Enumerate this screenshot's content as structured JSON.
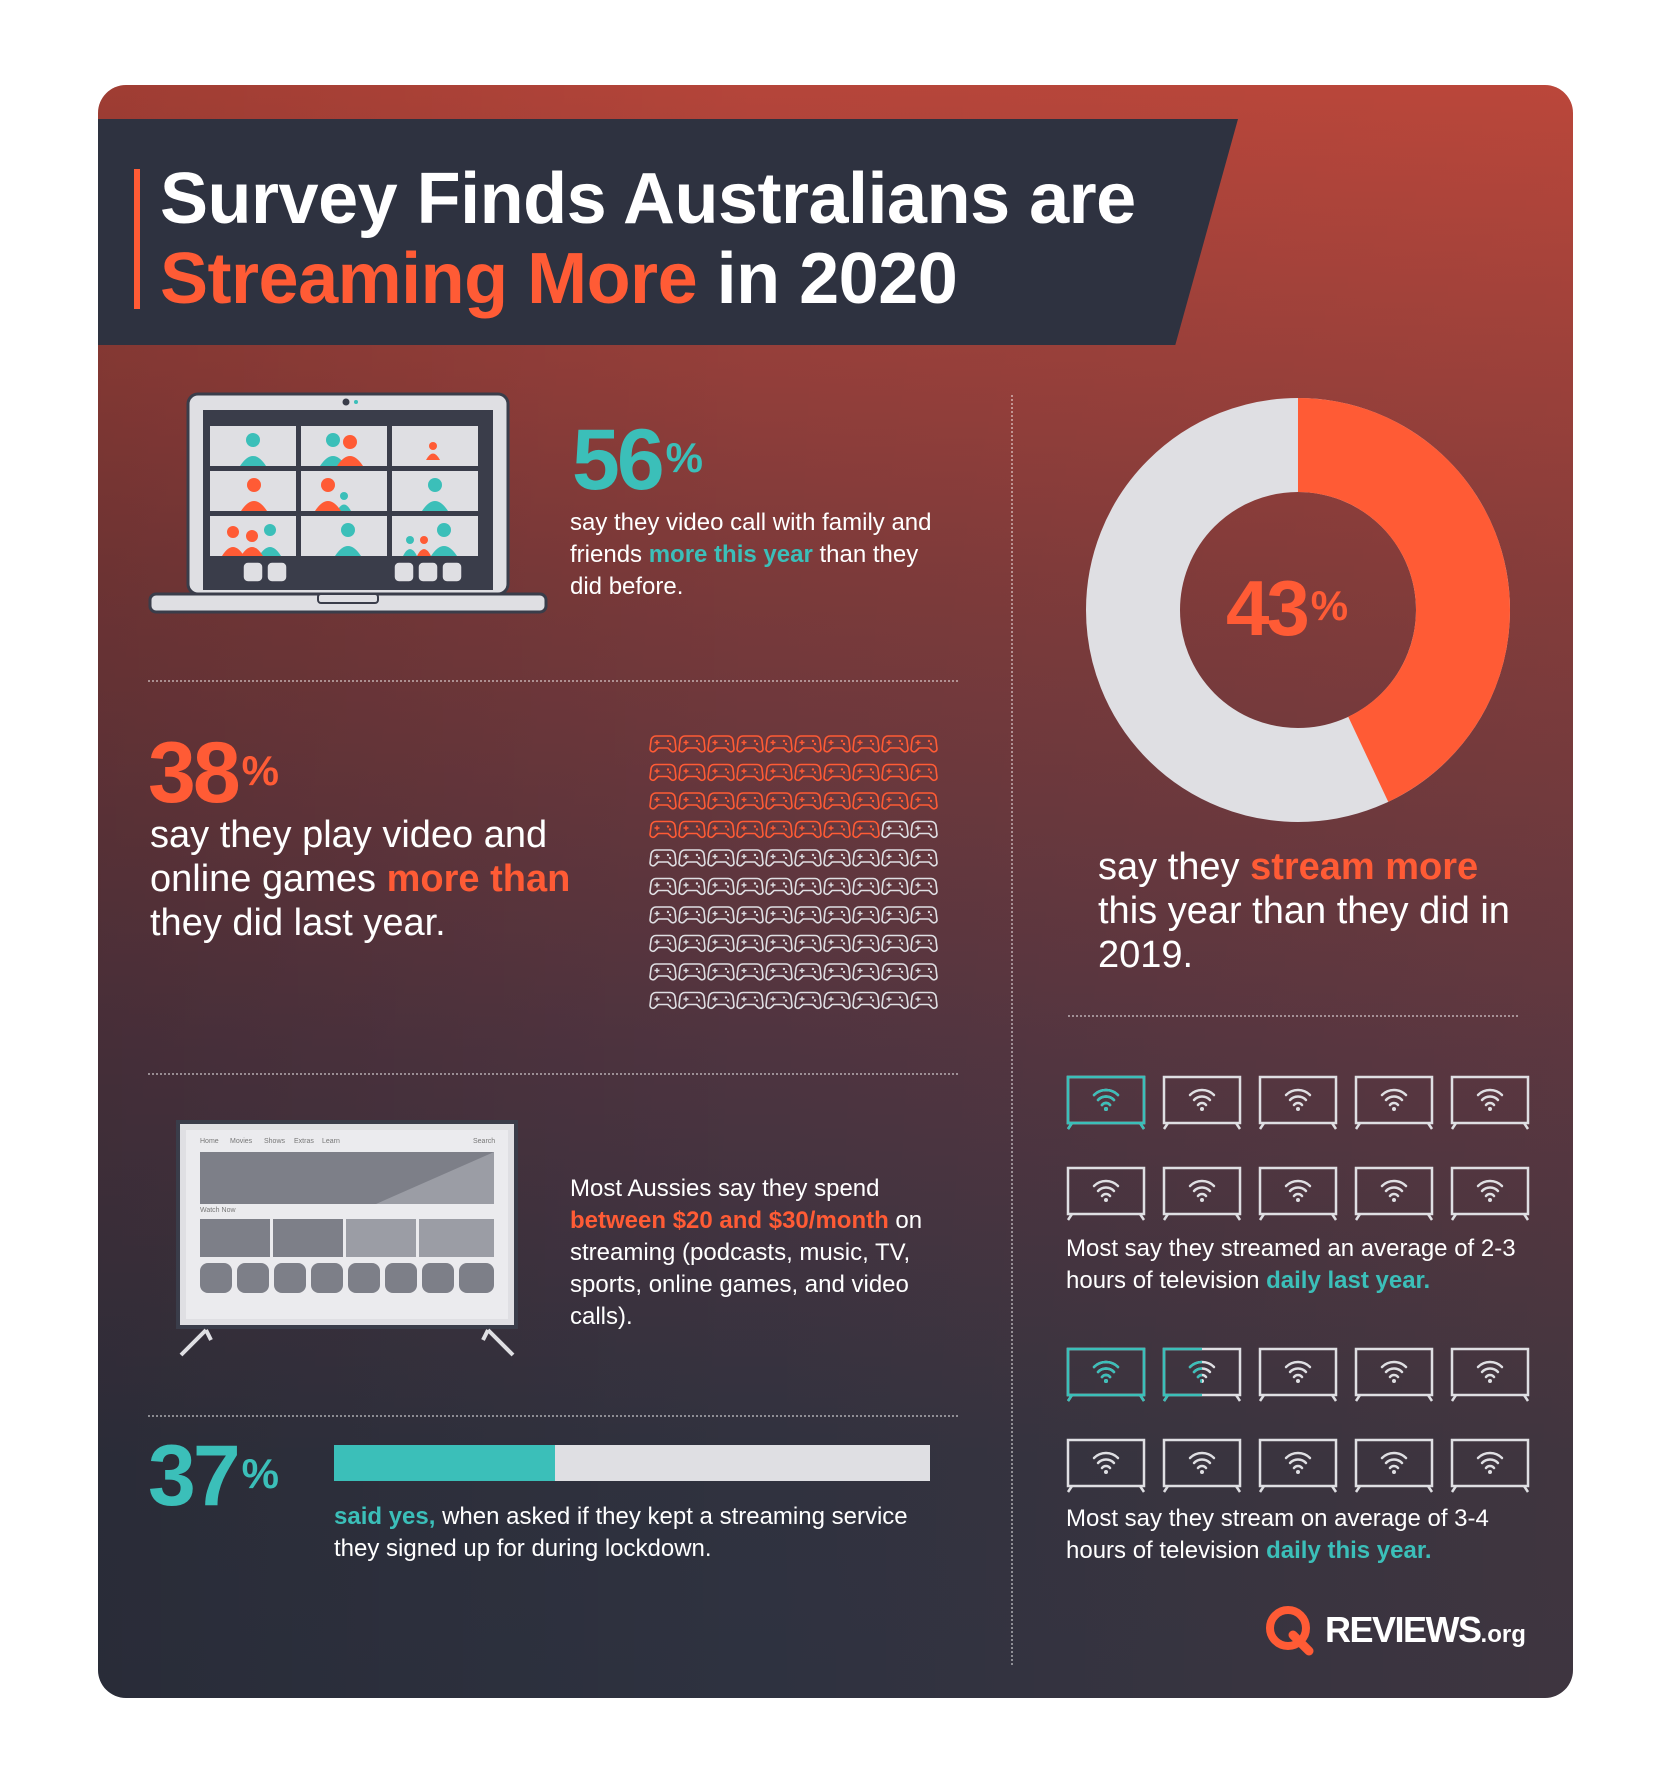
{
  "header": {
    "title_line1": "Survey Finds Australians are",
    "title_highlight": "Streaming More",
    "title_rest": " in 2020"
  },
  "video_call": {
    "value": "56",
    "unit": "%",
    "text_before": "say they video call with family and friends ",
    "highlight": "more this year",
    "text_after": " than they did before."
  },
  "games": {
    "value": "38",
    "unit": "%",
    "text_before": "say they play video and online games ",
    "highlight": "more than",
    "text_after": " they did last year.",
    "grid_total": 100,
    "grid_highlighted": 38
  },
  "stream_more": {
    "value": "43",
    "unit": "%",
    "fraction": 0.43,
    "text_before": "say they ",
    "highlight": "stream more",
    "text_after": " this year than they did in 2019."
  },
  "spend": {
    "text_before": "Most Aussies say they spend ",
    "highlight": "between $20 and $30/month",
    "text_after": " on streaming (podcasts, music, TV, sports, online games, and video calls).",
    "tv_nav": [
      "Home",
      "Movies",
      "Shows",
      "Extras",
      "Learn"
    ],
    "tv_search": "Search",
    "tv_watch_now": "Watch Now"
  },
  "kept_service": {
    "value": "37",
    "unit": "%",
    "fraction": 0.37,
    "highlight": "said yes,",
    "text_after": " when asked if they kept a streaming service they signed up for during lockdown."
  },
  "tv_last_year": {
    "highlighted": 1,
    "text_before": "Most say they streamed an average of 2-3 hours of television ",
    "highlight": "daily last year."
  },
  "tv_this_year": {
    "highlighted": 1.5,
    "text_before": "Most say they stream on average of 3-4 hours of television ",
    "highlight": "daily this year."
  },
  "logo": {
    "name": "REVIEWS",
    "suffix": ".org"
  },
  "colors": {
    "orange": "#ff5b35",
    "teal": "#3bbfb9",
    "navy": "#2e3240",
    "light": "#dfdfe3"
  },
  "icons": [
    "laptop-video-call-icon",
    "gamepad-icon",
    "tv-streaming-icon",
    "wifi-tv-icon",
    "reviews-logo-icon"
  ]
}
